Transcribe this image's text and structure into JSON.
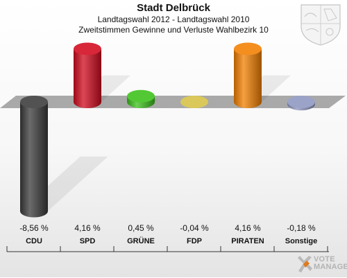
{
  "header": {
    "title": "Stadt Delbrück",
    "subtitle": "Landtagswahl 2012 - Landtagswahl 2010",
    "subtitle2": "Zweitstimmen Gewinne und Verluste Wahlbezirk 10"
  },
  "logo": {
    "line1": "VOTE",
    "line2": "MANAGER"
  },
  "chart_data": {
    "type": "bar",
    "title": "Stadt Delbrück",
    "categories": [
      "CDU",
      "SPD",
      "GRÜNE",
      "FDP",
      "PIRATEN",
      "Sonstige"
    ],
    "values": [
      -8.56,
      4.16,
      0.45,
      -0.04,
      4.16,
      -0.18
    ],
    "value_labels": [
      "-8,56 %",
      "4,16 %",
      "0,45 %",
      "-0,04 %",
      "4,16 %",
      "-0,18 %"
    ],
    "colors": [
      "#3a3a3a",
      "#d10a1e",
      "#3cc01a",
      "#d6c044",
      "#f27f00",
      "#8f96c0"
    ],
    "unit": "%",
    "ylim": [
      -8.56,
      4.16
    ],
    "grid": false
  }
}
